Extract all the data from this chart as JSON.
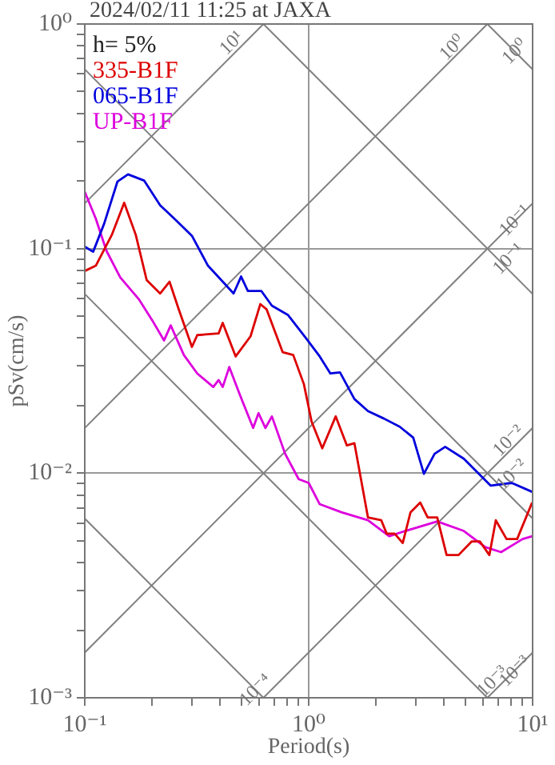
{
  "chart_data": {
    "type": "line",
    "title": "2024/02/11 11:25 at JAXA",
    "xlabel": "Period(s)",
    "ylabel": "pSv(cm/s)",
    "log": "xy",
    "grid": true,
    "legend": "top left",
    "marker": "none",
    "line_style": "solid",
    "xlim": [
      0.1,
      10
    ],
    "ylim": [
      0.001,
      1
    ],
    "xticks": [
      {
        "value": 0.1,
        "label": "10⁻¹"
      },
      {
        "value": 0.2,
        "label": null
      },
      {
        "value": 0.3,
        "label": null
      },
      {
        "value": 0.4,
        "label": null
      },
      {
        "value": 0.5,
        "label": null
      },
      {
        "value": 0.6,
        "label": null
      },
      {
        "value": 0.7,
        "label": null
      },
      {
        "value": 0.8,
        "label": null
      },
      {
        "value": 0.9,
        "label": null
      },
      {
        "value": 1,
        "label": "10⁰"
      },
      {
        "value": 2,
        "label": null
      },
      {
        "value": 3,
        "label": null
      },
      {
        "value": 4,
        "label": null
      },
      {
        "value": 5,
        "label": null
      },
      {
        "value": 6,
        "label": null
      },
      {
        "value": 7,
        "label": null
      },
      {
        "value": 8,
        "label": null
      },
      {
        "value": 9,
        "label": null
      },
      {
        "value": 10,
        "label": "10¹"
      }
    ],
    "yticks": [
      {
        "value": 0.001,
        "label": "10⁻³"
      },
      {
        "value": 0.002,
        "label": null
      },
      {
        "value": 0.003,
        "label": null
      },
      {
        "value": 0.004,
        "label": null
      },
      {
        "value": 0.005,
        "label": null
      },
      {
        "value": 0.006,
        "label": null
      },
      {
        "value": 0.007,
        "label": null
      },
      {
        "value": 0.008,
        "label": null
      },
      {
        "value": 0.009,
        "label": null
      },
      {
        "value": 0.01,
        "label": "10⁻²"
      },
      {
        "value": 0.02,
        "label": null
      },
      {
        "value": 0.03,
        "label": null
      },
      {
        "value": 0.04,
        "label": null
      },
      {
        "value": 0.05,
        "label": null
      },
      {
        "value": 0.06,
        "label": null
      },
      {
        "value": 0.07,
        "label": null
      },
      {
        "value": 0.08,
        "label": null
      },
      {
        "value": 0.09,
        "label": null
      },
      {
        "value": 0.1,
        "label": "10⁻¹"
      },
      {
        "value": 0.2,
        "label": null
      },
      {
        "value": 0.3,
        "label": null
      },
      {
        "value": 0.4,
        "label": null
      },
      {
        "value": 0.5,
        "label": null
      },
      {
        "value": 0.6,
        "label": null
      },
      {
        "value": 0.7,
        "label": null
      },
      {
        "value": 0.8,
        "label": null
      },
      {
        "value": 0.9,
        "label": null
      },
      {
        "value": 1,
        "label": "10⁰"
      }
    ],
    "series": [
      {
        "name": "335-B1F",
        "color": "#dd0000",
        "x": [
          0.1,
          0.112,
          0.132,
          0.15,
          0.169,
          0.189,
          0.217,
          0.239,
          0.263,
          0.301,
          0.318,
          0.396,
          0.413,
          0.472,
          0.55,
          0.608,
          0.649,
          0.765,
          0.853,
          0.952,
          1.03,
          1.15,
          1.32,
          1.48,
          1.6,
          1.84,
          2.11,
          2.23,
          2.42,
          2.63,
          2.85,
          3.15,
          3.4,
          3.75,
          4.13,
          4.67,
          5.35,
          5.81,
          6.41,
          6.85,
          7.65,
          8.53,
          9.95
        ],
        "values": [
          0.0795,
          0.0839,
          0.115,
          0.16,
          0.115,
          0.0724,
          0.0631,
          0.0712,
          0.0536,
          0.0365,
          0.0412,
          0.0419,
          0.0467,
          0.0331,
          0.0407,
          0.0566,
          0.0536,
          0.0346,
          0.0336,
          0.0249,
          0.017,
          0.0129,
          0.0179,
          0.0133,
          0.0136,
          0.00635,
          0.00617,
          0.00538,
          0.00538,
          0.00489,
          0.0067,
          0.0074,
          0.00635,
          0.00635,
          0.00432,
          0.00432,
          0.00497,
          0.00497,
          0.00432,
          0.00617,
          0.00509,
          0.00509,
          0.0074
        ]
      },
      {
        "name": "065-B1F",
        "color": "#0000dd",
        "x": [
          0.1,
          0.109,
          0.122,
          0.14,
          0.156,
          0.184,
          0.217,
          0.255,
          0.301,
          0.355,
          0.418,
          0.462,
          0.499,
          0.535,
          0.614,
          0.685,
          0.807,
          0.979,
          1.12,
          1.25,
          1.38,
          1.6,
          1.84,
          2.17,
          2.55,
          2.93,
          3.27,
          3.65,
          4.07,
          4.93,
          6.49,
          8.07,
          9.95
        ],
        "values": [
          0.102,
          0.0968,
          0.129,
          0.199,
          0.214,
          0.201,
          0.156,
          0.134,
          0.114,
          0.0839,
          0.0704,
          0.0631,
          0.0751,
          0.0648,
          0.0648,
          0.0557,
          0.0507,
          0.0396,
          0.0331,
          0.0278,
          0.0281,
          0.0214,
          0.0189,
          0.0175,
          0.0161,
          0.0144,
          0.00993,
          0.0122,
          0.0131,
          0.0116,
          0.00881,
          0.00905,
          0.00826
        ]
      },
      {
        "name": "UP-B1F",
        "color": "#dd00dd",
        "x": [
          0.1,
          0.112,
          0.125,
          0.144,
          0.174,
          0.2,
          0.226,
          0.242,
          0.277,
          0.318,
          0.375,
          0.396,
          0.413,
          0.442,
          0.493,
          0.565,
          0.597,
          0.641,
          0.685,
          0.785,
          0.902,
          1.0,
          1.12,
          1.4,
          1.84,
          2.29,
          2.7,
          3.75,
          4.93,
          6.14,
          7.23,
          9.02,
          9.95
        ],
        "values": [
          0.179,
          0.136,
          0.0977,
          0.0744,
          0.0597,
          0.048,
          0.039,
          0.0455,
          0.0336,
          0.0278,
          0.0242,
          0.026,
          0.0242,
          0.0297,
          0.0223,
          0.0159,
          0.0185,
          0.0159,
          0.0179,
          0.0122,
          0.00941,
          0.00905,
          0.00728,
          0.0067,
          0.00617,
          0.00524,
          0.00553,
          0.0061,
          0.00553,
          0.00469,
          0.00445,
          0.00509,
          0.00524
        ]
      },
      {
        "color": "#808080",
        "x": [
          0.1,
          0.628
        ],
        "values": [
          0.159,
          1
        ]
      },
      {
        "color": "#808080",
        "x": [
          0.1,
          6.28
        ],
        "values": [
          0.0159,
          1
        ]
      },
      {
        "color": "#808080",
        "x": [
          0.1,
          10
        ],
        "values": [
          0.00159,
          0.159
        ]
      },
      {
        "color": "#808080",
        "x": [
          0.628,
          10
        ],
        "values": [
          0.001,
          0.0159
        ]
      },
      {
        "color": "#808080",
        "x": [
          6.28,
          10
        ],
        "values": [
          0.001,
          0.00159
        ]
      },
      {
        "color": "#808080",
        "x": [
          6.28,
          10
        ],
        "values": [
          1,
          0.628
        ]
      },
      {
        "color": "#808080",
        "x": [
          0.628,
          10
        ],
        "values": [
          1,
          0.0628
        ]
      },
      {
        "color": "#808080",
        "x": [
          0.1,
          10
        ],
        "values": [
          0.628,
          0.00628
        ]
      },
      {
        "color": "#808080",
        "x": [
          0.1,
          6.28
        ],
        "values": [
          0.0628,
          0.001
        ]
      },
      {
        "color": "#808080",
        "x": [
          0.1,
          0.628
        ],
        "values": [
          0.00628,
          0.001
        ]
      }
    ],
    "annotations": [
      "h= 5%",
      {
        "text": "10¹",
        "x": 0.454,
        "y": 0.821
      },
      {
        "text": "10⁰",
        "x": 4.39,
        "y": 0.782
      },
      {
        "text": "10⁰",
        "x": 8.36,
        "y": 0.751
      },
      {
        "text": "10⁻¹",
        "x": 8.36,
        "y": 0.133
      },
      {
        "text": "10⁻¹",
        "x": 7.83,
        "y": 0.0896
      },
      {
        "text": "10⁻²",
        "x": 7.83,
        "y": 0.0139
      },
      {
        "text": "10⁻²",
        "x": 8.09,
        "y": 0.0098
      },
      {
        "text": "10⁻³",
        "x": 6.64,
        "y": 0.00118
      },
      {
        "text": "10⁻³",
        "x": 8.36,
        "y": 0.00131
      },
      {
        "text": "10⁻⁴",
        "x": 0.581,
        "y": 0.00108
      }
    ]
  }
}
